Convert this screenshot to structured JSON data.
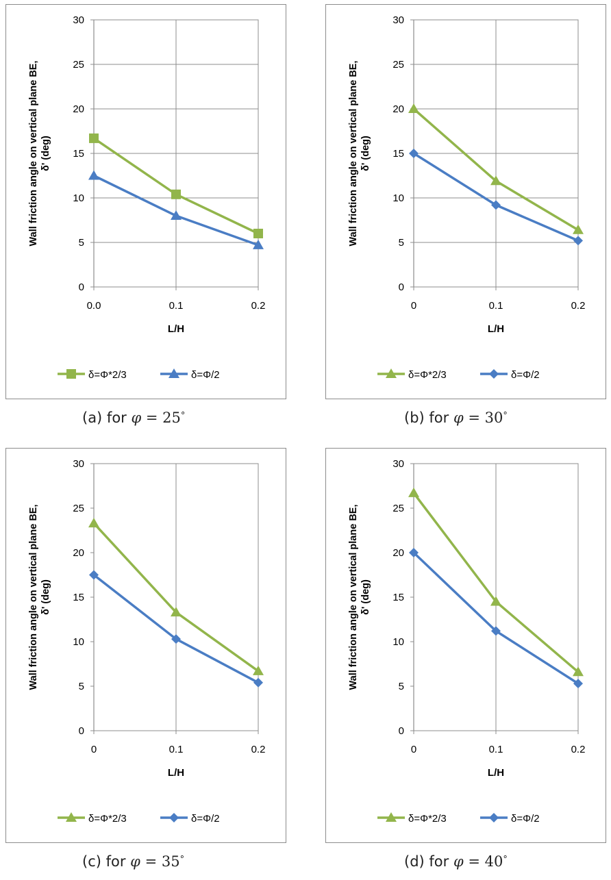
{
  "colors": {
    "green": "#92b54b",
    "blue": "#4a7dc4",
    "grid": "#8c8c8c",
    "text": "#000000"
  },
  "panels": [
    {
      "caption": {
        "prefix": "(a)  for  ",
        "symbol": "φ",
        "equals": " = ",
        "value": "25",
        "unit": "°"
      },
      "chart_data": {
        "type": "line",
        "title": "",
        "xlabel": "L/H",
        "ylabel_line1": "Wall friction angle on vertical plane BE,",
        "ylabel_line2": "δ' (deg)",
        "x": [
          0,
          0.1,
          0.2
        ],
        "x_ticks": [
          "0.0",
          "0.1",
          "0.2"
        ],
        "y_ticks": [
          "0",
          "5",
          "10",
          "15",
          "20",
          "25",
          "30"
        ],
        "ylim": [
          0,
          30
        ],
        "grid": "vertical and horizontal",
        "legend_position": "bottom",
        "series": [
          {
            "name": "δ=Φ*2/3",
            "color": "#92b54b",
            "marker": "square",
            "values": [
              16.7,
              10.4,
              6.0
            ]
          },
          {
            "name": "δ=Φ/2",
            "color": "#4a7dc4",
            "marker": "triangle",
            "values": [
              12.5,
              8.0,
              4.7
            ]
          }
        ]
      }
    },
    {
      "caption": {
        "prefix": "(b)  for  ",
        "symbol": "φ",
        "equals": " = ",
        "value": "30",
        "unit": "°"
      },
      "chart_data": {
        "type": "line",
        "title": "",
        "xlabel": "L/H",
        "ylabel_line1": "Wall friction angle on vertical plane BE,",
        "ylabel_line2": "δ' (deg)",
        "x": [
          0,
          0.1,
          0.2
        ],
        "x_ticks": [
          "0",
          "0.1",
          "0.2"
        ],
        "y_ticks": [
          "0",
          "5",
          "10",
          "15",
          "20",
          "25",
          "30"
        ],
        "ylim": [
          0,
          30
        ],
        "grid": "vertical and horizontal",
        "legend_position": "bottom",
        "series": [
          {
            "name": "δ=Φ*2/3",
            "color": "#92b54b",
            "marker": "triangle",
            "values": [
              20.0,
              11.9,
              6.4
            ]
          },
          {
            "name": "δ=Φ/2",
            "color": "#4a7dc4",
            "marker": "diamond",
            "values": [
              15.0,
              9.2,
              5.2
            ]
          }
        ]
      }
    },
    {
      "caption": {
        "prefix": "(c)  for  ",
        "symbol": "φ",
        "equals": " = ",
        "value": "35",
        "unit": "°"
      },
      "chart_data": {
        "type": "line",
        "title": "",
        "xlabel": "L/H",
        "ylabel_line1": "Wall friction angle on vertical plane BE,",
        "ylabel_line2": "δ' (deg)",
        "x": [
          0,
          0.1,
          0.2
        ],
        "x_ticks": [
          "0",
          "0.1",
          "0.2"
        ],
        "y_ticks": [
          "0",
          "5",
          "10",
          "15",
          "20",
          "25",
          "30"
        ],
        "ylim": [
          0,
          30
        ],
        "grid": "vertical only",
        "legend_position": "bottom",
        "series": [
          {
            "name": "δ=Φ*2/3",
            "color": "#92b54b",
            "marker": "triangle",
            "values": [
              23.3,
              13.3,
              6.7
            ]
          },
          {
            "name": "δ=Φ/2",
            "color": "#4a7dc4",
            "marker": "diamond",
            "values": [
              17.5,
              10.3,
              5.4
            ]
          }
        ]
      }
    },
    {
      "caption": {
        "prefix": "(d)  for  ",
        "symbol": "φ",
        "equals": " = ",
        "value": "40",
        "unit": "°"
      },
      "chart_data": {
        "type": "line",
        "title": "",
        "xlabel": "L/H",
        "ylabel_line1": "Wall friction angle on vertical plane BE,",
        "ylabel_line2": "δ' (deg)",
        "x": [
          0,
          0.1,
          0.2
        ],
        "x_ticks": [
          "0",
          "0.1",
          "0.2"
        ],
        "y_ticks": [
          "0",
          "5",
          "10",
          "15",
          "20",
          "25",
          "30"
        ],
        "ylim": [
          0,
          30
        ],
        "grid": "vertical only",
        "legend_position": "bottom",
        "series": [
          {
            "name": "δ=Φ*2/3",
            "color": "#92b54b",
            "marker": "triangle",
            "values": [
              26.7,
              14.5,
              6.6
            ]
          },
          {
            "name": "δ=Φ/2",
            "color": "#4a7dc4",
            "marker": "diamond",
            "values": [
              20.0,
              11.2,
              5.3
            ]
          }
        ]
      }
    }
  ]
}
